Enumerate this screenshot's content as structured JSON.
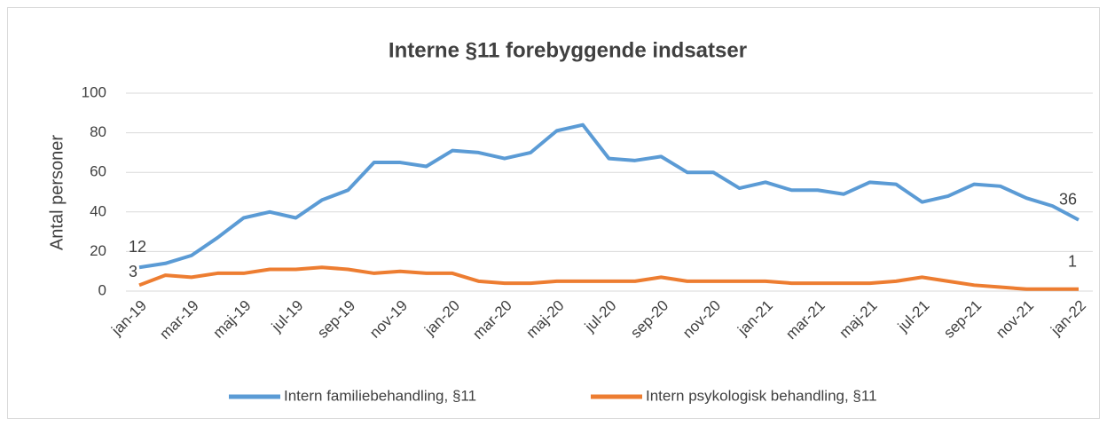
{
  "chart_data": {
    "type": "line",
    "title": "Interne §11 forebyggende indsatser",
    "y_label": "Antal personer",
    "categories": [
      "jan-19",
      null,
      "mar-19",
      null,
      "maj-19",
      null,
      "jul-19",
      null,
      "sep-19",
      null,
      "nov-19",
      null,
      "jan-20",
      null,
      "mar-20",
      null,
      "maj-20",
      null,
      "jul-20",
      null,
      "sep-20",
      null,
      "nov-20",
      null,
      "jan-21",
      null,
      "mar-21",
      null,
      "maj-21",
      null,
      "jul-21",
      null,
      "sep-21",
      null,
      "nov-21",
      null,
      "jan-22"
    ],
    "series": [
      {
        "name": "Intern familiebehandling, §11",
        "color": "#5b9bd5",
        "values": [
          12,
          14,
          18,
          27,
          37,
          40,
          37,
          46,
          51,
          65,
          65,
          63,
          71,
          70,
          67,
          70,
          81,
          84,
          67,
          66,
          68,
          60,
          60,
          52,
          55,
          51,
          51,
          49,
          55,
          54,
          45,
          48,
          54,
          53,
          47,
          43,
          36
        ]
      },
      {
        "name": "Intern psykologisk behandling, §11",
        "color": "#ed7d31",
        "values": [
          3,
          8,
          7,
          9,
          9,
          11,
          11,
          12,
          11,
          9,
          10,
          9,
          9,
          5,
          4,
          4,
          5,
          5,
          5,
          5,
          7,
          5,
          5,
          5,
          5,
          4,
          4,
          4,
          4,
          5,
          7,
          5,
          3,
          2,
          1,
          1,
          1
        ]
      }
    ],
    "data_label_indices": [
      0,
      36
    ],
    "ylim": [
      0,
      100
    ],
    "yticks": [
      0,
      20,
      40,
      60,
      80,
      100
    ],
    "grid": true,
    "legend": "bottom"
  }
}
